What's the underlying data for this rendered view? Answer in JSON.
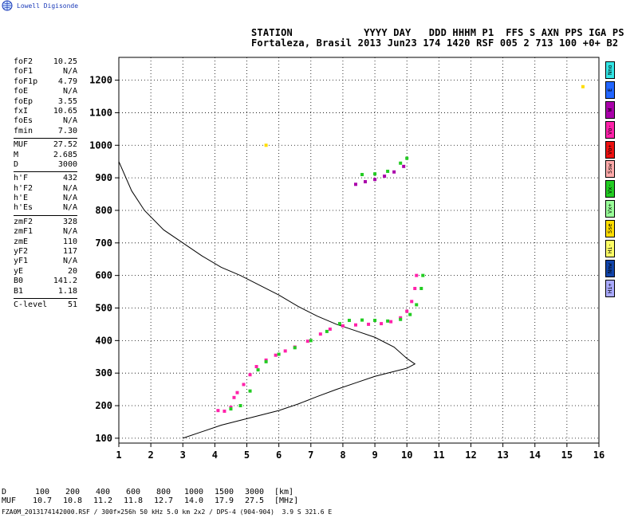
{
  "logo": {
    "text": "Lowell Digisonde"
  },
  "header": {
    "line1": "STATION            YYYY DAY   DDD HHHM P1  FFS S AXN PPS IGA PS",
    "line2": "Fortaleza, Brasil 2013 Jun23 174 1420 RSF 005 2 713 100 +0+ B2"
  },
  "params": {
    "group1": [
      {
        "label": "foF2",
        "value": "10.25"
      },
      {
        "label": "foF1",
        "value": "N/A"
      },
      {
        "label": "foF1p",
        "value": "4.79"
      },
      {
        "label": "foE",
        "value": "N/A"
      },
      {
        "label": "foEp",
        "value": "3.55"
      },
      {
        "label": "fxI",
        "value": "10.65"
      },
      {
        "label": "foEs",
        "value": "N/A"
      },
      {
        "label": "fmin",
        "value": "7.30"
      }
    ],
    "group2": [
      {
        "label": "MUF",
        "value": "27.52"
      },
      {
        "label": "M",
        "value": "2.685"
      },
      {
        "label": "D",
        "value": "3000"
      }
    ],
    "group3": [
      {
        "label": "h'F",
        "value": "432"
      },
      {
        "label": "h'F2",
        "value": "N/A"
      },
      {
        "label": "h'E",
        "value": "N/A"
      },
      {
        "label": "h'Es",
        "value": "N/A"
      }
    ],
    "group4": [
      {
        "label": "zmF2",
        "value": "328"
      },
      {
        "label": "zmF1",
        "value": "N/A"
      },
      {
        "label": "zmE",
        "value": "110"
      },
      {
        "label": "yF2",
        "value": "117"
      },
      {
        "label": "yF1",
        "value": "N/A"
      },
      {
        "label": "yE",
        "value": "20"
      },
      {
        "label": "B0",
        "value": "141.2"
      },
      {
        "label": "B1",
        "value": "1.18"
      }
    ],
    "group5": [
      {
        "label": "C-level",
        "value": "51"
      }
    ]
  },
  "legend": [
    {
      "label": "Nno",
      "color": "#33e6e6"
    },
    {
      "label": "E",
      "color": "#2266ff"
    },
    {
      "label": "W",
      "color": "#aa00aa"
    },
    {
      "label": "Vo-",
      "color": "#ff22aa"
    },
    {
      "label": "Vo+",
      "color": "#ee1111"
    },
    {
      "label": "Ssw",
      "color": "#ffaaaa"
    },
    {
      "label": "Vx-",
      "color": "#22cc22"
    },
    {
      "label": "Vx+",
      "color": "#99ff99"
    },
    {
      "label": "Sse",
      "color": "#ffdd00"
    },
    {
      "label": "Hi-",
      "color": "#ffff66"
    },
    {
      "label": "Nnw",
      "color": "#1144aa"
    },
    {
      "label": "Hi+",
      "color": "#aaaaff"
    }
  ],
  "muf_table": {
    "d_label": "D",
    "muf_label": "MUF",
    "d_values": [
      "100",
      "200",
      "400",
      "600",
      "800",
      "1000",
      "1500",
      "3000"
    ],
    "muf_values": [
      "10.7",
      "10.8",
      "11.2",
      "11.8",
      "12.7",
      "14.0",
      "17.9",
      "27.5"
    ],
    "d_unit": "[km]",
    "muf_unit": "[MHz]"
  },
  "footer": "FZA0M_2013174142000.RSF / 300f×256h 50 kHz 5.0 km 2x2 / DPS-4 (904-904)  3.9 S 321.6 E",
  "chart_data": {
    "type": "scatter",
    "x_ticks": [
      "1",
      "2",
      "3",
      "4",
      "5",
      "6",
      "7",
      "8",
      "9",
      "10",
      "11",
      "12",
      "13",
      "14",
      "15",
      "16"
    ],
    "y_ticks": [
      "100",
      "200",
      "300",
      "400",
      "500",
      "600",
      "700",
      "800",
      "900",
      "1000",
      "1100",
      "1200"
    ],
    "xlim": [
      1,
      16
    ],
    "ylim": [
      85,
      1270
    ],
    "grid": true,
    "profile_curve": {
      "color": "#000000",
      "points": [
        [
          1.0,
          950
        ],
        [
          1.4,
          860
        ],
        [
          1.8,
          800
        ],
        [
          2.4,
          740
        ],
        [
          3.0,
          700
        ],
        [
          3.6,
          660
        ],
        [
          4.2,
          625
        ],
        [
          4.8,
          600
        ],
        [
          5.4,
          570
        ],
        [
          6.0,
          540
        ],
        [
          6.6,
          505
        ],
        [
          7.2,
          475
        ],
        [
          7.8,
          450
        ],
        [
          8.4,
          430
        ],
        [
          9.0,
          410
        ],
        [
          9.6,
          380
        ],
        [
          10.0,
          345
        ],
        [
          10.25,
          328
        ],
        [
          10.0,
          315
        ],
        [
          9.6,
          305
        ],
        [
          9.0,
          290
        ],
        [
          8.4,
          270
        ],
        [
          7.8,
          250
        ],
        [
          7.2,
          228
        ],
        [
          6.6,
          205
        ],
        [
          6.0,
          185
        ],
        [
          5.4,
          170
        ],
        [
          4.8,
          155
        ],
        [
          4.2,
          140
        ],
        [
          3.6,
          120
        ],
        [
          3.0,
          100
        ]
      ]
    },
    "traces": [
      {
        "name": "Vo-",
        "color": "#ff22aa",
        "points": [
          [
            4.1,
            185
          ],
          [
            4.3,
            183
          ],
          [
            4.5,
            195
          ],
          [
            4.6,
            225
          ],
          [
            4.7,
            240
          ],
          [
            4.9,
            265
          ],
          [
            5.1,
            295
          ],
          [
            5.3,
            320
          ],
          [
            5.6,
            340
          ],
          [
            5.9,
            355
          ],
          [
            6.2,
            368
          ],
          [
            6.5,
            380
          ],
          [
            6.9,
            398
          ],
          [
            7.3,
            420
          ],
          [
            7.6,
            435
          ],
          [
            8.0,
            445
          ],
          [
            8.4,
            448
          ],
          [
            8.8,
            450
          ],
          [
            9.2,
            452
          ],
          [
            9.5,
            458
          ],
          [
            9.8,
            470
          ],
          [
            10.0,
            490
          ],
          [
            10.15,
            520
          ],
          [
            10.25,
            560
          ],
          [
            10.3,
            600
          ]
        ]
      },
      {
        "name": "Vx-",
        "color": "#22cc22",
        "points": [
          [
            4.5,
            190
          ],
          [
            4.8,
            200
          ],
          [
            5.1,
            245
          ],
          [
            5.35,
            310
          ],
          [
            5.6,
            335
          ],
          [
            6.0,
            358
          ],
          [
            6.5,
            378
          ],
          [
            7.0,
            400
          ],
          [
            7.5,
            428
          ],
          [
            7.9,
            452
          ],
          [
            8.2,
            462
          ],
          [
            8.6,
            463
          ],
          [
            9.0,
            462
          ],
          [
            9.4,
            460
          ],
          [
            9.8,
            465
          ],
          [
            10.1,
            480
          ],
          [
            10.3,
            510
          ],
          [
            10.45,
            560
          ],
          [
            10.5,
            600
          ]
        ]
      },
      {
        "name": "W",
        "color": "#aa00aa",
        "points": [
          [
            8.4,
            880
          ],
          [
            8.7,
            888
          ],
          [
            9.0,
            895
          ],
          [
            9.3,
            905
          ],
          [
            9.6,
            918
          ],
          [
            9.9,
            935
          ]
        ]
      },
      {
        "name": "Vx-",
        "color": "#22cc22",
        "points": [
          [
            8.6,
            910
          ],
          [
            9.0,
            912
          ],
          [
            9.4,
            920
          ],
          [
            9.8,
            945
          ],
          [
            10.0,
            960
          ]
        ]
      },
      {
        "name": "Sse",
        "color": "#ffdd00",
        "points": [
          [
            5.6,
            1000
          ],
          [
            15.5,
            1180
          ]
        ]
      }
    ]
  }
}
